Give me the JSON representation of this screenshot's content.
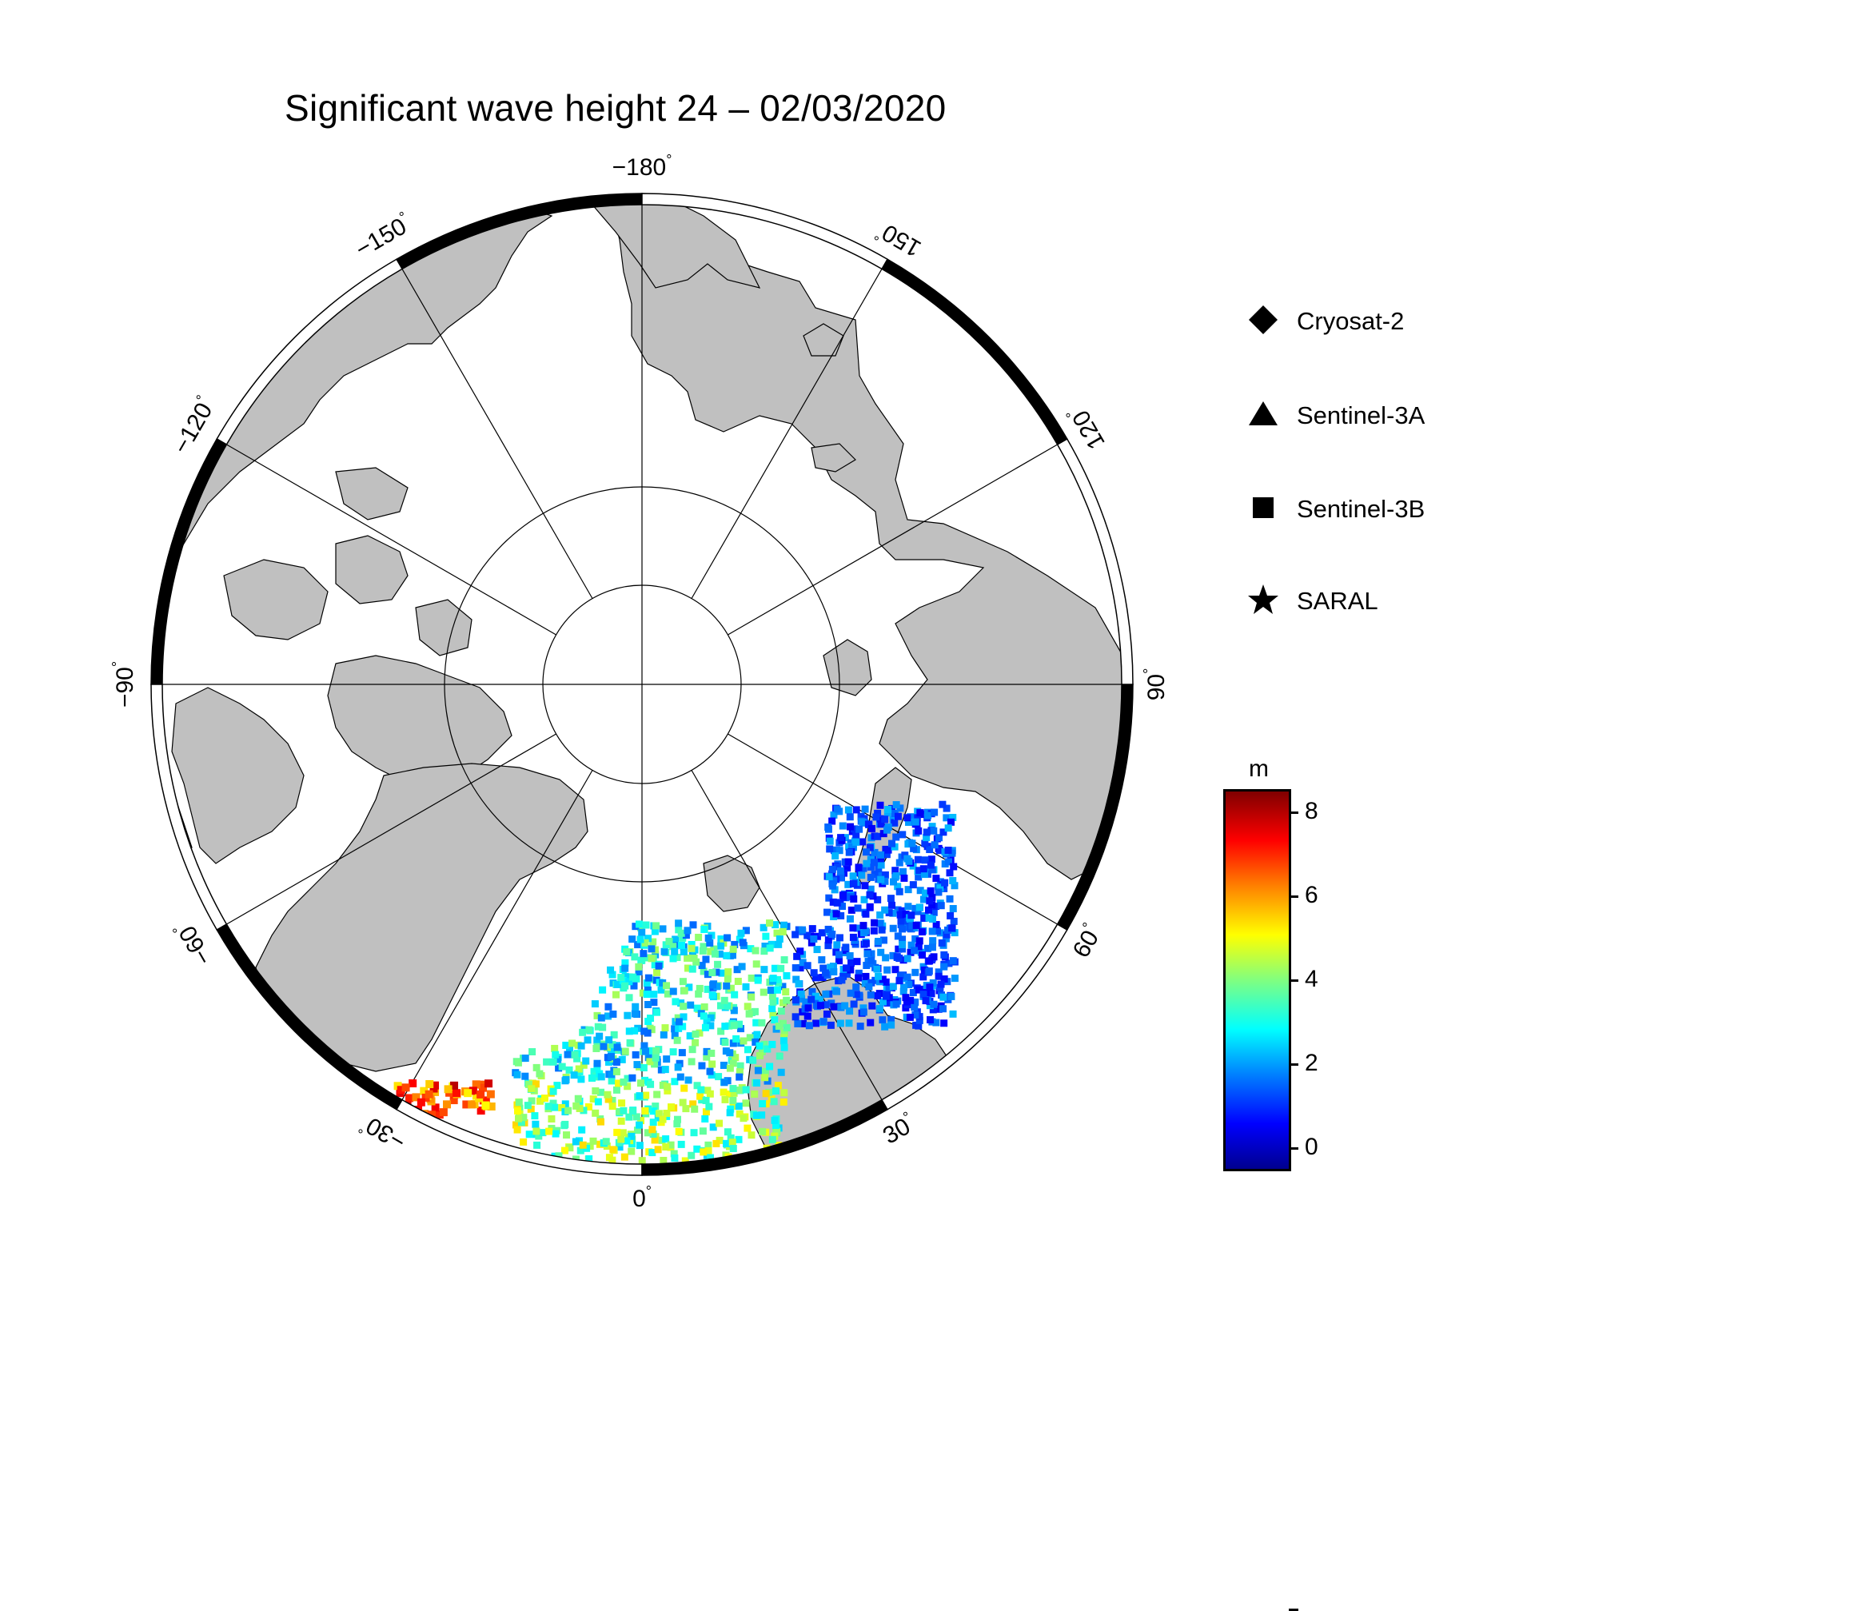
{
  "title": "Significant wave height 24 – 02/03/2020",
  "map": {
    "projection": "north-polar-stereographic",
    "longitude_labels": [
      {
        "lon": -180,
        "text": "−180",
        "unit": "°"
      },
      {
        "lon": 150,
        "text": "150",
        "unit": "°"
      },
      {
        "lon": 120,
        "text": "120",
        "unit": "°"
      },
      {
        "lon": 90,
        "text": "90",
        "unit": "°"
      },
      {
        "lon": 60,
        "text": "60",
        "unit": "°"
      },
      {
        "lon": 30,
        "text": "30",
        "unit": "°"
      },
      {
        "lon": 0,
        "text": "0",
        "unit": "°"
      },
      {
        "lon": -30,
        "text": "−30",
        "unit": "°"
      },
      {
        "lon": -60,
        "text": "−60",
        "unit": "°"
      },
      {
        "lon": -90,
        "text": "−90",
        "unit": "°"
      },
      {
        "lon": -120,
        "text": "−120",
        "unit": "°"
      },
      {
        "lon": -150,
        "text": "−150",
        "unit": "°"
      }
    ],
    "colors": {
      "land": "#c0c0c0",
      "ocean": "#ffffff",
      "frame": "#000000"
    }
  },
  "legend": {
    "items": [
      {
        "label": "Cryosat-2",
        "symbol": "diamond-icon"
      },
      {
        "label": "Sentinel-3A",
        "symbol": "triangle-icon"
      },
      {
        "label": "Sentinel-3B",
        "symbol": "square-icon"
      },
      {
        "label": "SARAL",
        "symbol": "star-icon"
      }
    ]
  },
  "colorbar": {
    "unit": "m",
    "ticks": [
      "8",
      "6",
      "4",
      "2",
      "0"
    ],
    "range": [
      -0.5,
      8.5
    ],
    "colormap": "jet"
  }
}
